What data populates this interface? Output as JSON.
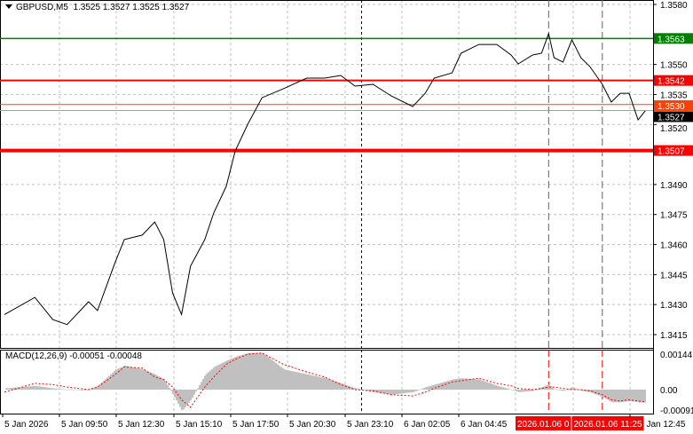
{
  "header": {
    "symbol": "GBPUSD,M5",
    "ohlc": "1.3525 1.3527 1.3525 1.3527"
  },
  "macd_label": {
    "name": "MACD(12,26,9)",
    "values": "-0.00051 -0.00048"
  },
  "colors": {
    "background": "#ffffff",
    "grid": "#c0c0c0",
    "price_line": "#000000",
    "green_level": "#008000",
    "red_level": "#ff0000",
    "bid_line": "#a0a0a0",
    "macd_histogram": "#c0c0c0",
    "macd_signal": "#ff0000"
  },
  "chart_data": [
    {
      "type": "line",
      "title": "GBPUSD,M5",
      "y_ticks": [
        "1.3580",
        "1.3550",
        "1.3535",
        "1.3520",
        "1.3490",
        "1.3475",
        "1.3460",
        "1.3445",
        "1.3430",
        "1.3415"
      ],
      "ylim": [
        1.341,
        1.3582
      ],
      "grid": true,
      "x_ticks": [
        "5 Jan 2026",
        "5 Jan 09:50",
        "5 Jan 12:30",
        "5 Jan 15:10",
        "5 Jan 17:50",
        "5 Jan 20:30",
        "5 Jan 23:10",
        "6 Jan 02:05",
        "6 Jan 04:45",
        "Jan 12:45"
      ],
      "series": {
        "x": [
          "5 Jan 07:15",
          "5 Jan 08:40",
          "5 Jan 09:30",
          "5 Jan 10:10",
          "5 Jan 11:10",
          "5 Jan 11:35",
          "5 Jan 12:25",
          "5 Jan 12:50",
          "5 Jan 13:40",
          "5 Jan 14:15",
          "5 Jan 14:40",
          "5 Jan 15:05",
          "5 Jan 15:30",
          "5 Jan 15:55",
          "5 Jan 16:35",
          "5 Jan 17:00",
          "5 Jan 17:35",
          "5 Jan 18:00",
          "5 Jan 18:35",
          "5 Jan 19:15",
          "5 Jan 20:15",
          "5 Jan 21:20",
          "5 Jan 22:10",
          "5 Jan 22:55",
          "5 Jan 23:40",
          "6 Jan 00:35",
          "6 Jan 01:30",
          "6 Jan 02:35",
          "6 Jan 03:10",
          "6 Jan 03:35",
          "6 Jan 04:25",
          "6 Jan 04:50",
          "6 Jan 05:40",
          "6 Jan 06:30",
          "6 Jan 07:10",
          "6 Jan 07:30",
          "6 Jan 08:10",
          "6 Jan 08:35",
          "6 Jan 08:55",
          "6 Jan 09:10",
          "6 Jan 09:35",
          "6 Jan 10:00",
          "6 Jan 10:25",
          "6 Jan 10:50",
          "6 Jan 11:25",
          "6 Jan 11:50",
          "6 Jan 12:15",
          "6 Jan 12:40",
          "6 Jan 13:05",
          "6 Jan 13:25"
        ],
        "close": [
          1.3425,
          1.34336,
          1.34225,
          1.342,
          1.34314,
          1.3427,
          1.34514,
          1.34625,
          1.34647,
          1.34713,
          1.34625,
          1.34358,
          1.3425,
          1.34492,
          1.34625,
          1.34758,
          1.34891,
          1.35068,
          1.35201,
          1.35334,
          1.35379,
          1.35432,
          1.35432,
          1.35445,
          1.35392,
          1.35401,
          1.35343,
          1.3529,
          1.35356,
          1.35432,
          1.35458,
          1.35556,
          1.356,
          1.356,
          1.35547,
          1.35503,
          1.35547,
          1.35556,
          1.35654,
          1.35534,
          1.35512,
          1.35623,
          1.35534,
          1.3549,
          1.35401,
          1.35312,
          1.35356,
          1.35356,
          1.35223,
          1.35268
        ]
      },
      "levels": [
        {
          "price": 1.3563,
          "label": "1.3563",
          "color": "#008000",
          "width": 1.5
        },
        {
          "price": 1.3542,
          "label": "1.3542",
          "color": "#ff0000",
          "width": 2
        },
        {
          "price": 1.353,
          "label": "1.3530",
          "color": "#ff4000",
          "width": 1
        },
        {
          "price": 1.3527,
          "label": "1.3527",
          "color": "#a0a0a0",
          "width": 1,
          "label_bg": "#000000"
        },
        {
          "price": 1.3507,
          "label": "1.3507",
          "color": "#ff0000",
          "width": 4
        }
      ],
      "vertical_lines": [
        {
          "time": "6 Jan 00:00",
          "color": "#000000",
          "label": ""
        },
        {
          "time": "6 Jan 08:55",
          "color": "#606060",
          "label": "2026.01.06 0"
        },
        {
          "time": "6 Jan 11:25",
          "color": "#606060",
          "label": "2026.01.06 11:25"
        }
      ]
    },
    {
      "type": "bar",
      "title": "MACD(12,26,9) -0.00051 -0.00048",
      "y_ticks": [
        "0.00144",
        "0.00",
        "-0.00091"
      ],
      "ylim": [
        -0.00091,
        0.00144
      ],
      "histogram": [
        5e-05,
        0.00015,
        5e-05,
        0.0,
        0.0,
        0.00015,
        0.0008,
        0.00095,
        0.0008,
        0.0006,
        0.0004,
        -0.0002,
        -0.00085,
        -0.0004,
        0.0006,
        0.0009,
        0.00115,
        0.0013,
        0.00145,
        0.00145,
        0.0008,
        0.0006,
        0.00045,
        0.00025,
        5e-05,
        -0.0001,
        -0.0002,
        -0.0001,
        0.0001,
        0.0002,
        0.0004,
        0.00045,
        0.0004,
        0.00015,
        0.0,
        -0.0001,
        -5e-05,
        0.0001,
        0.0002,
        0.0,
        -5e-05,
        0.0001,
        -5e-05,
        -0.0001,
        -0.0003,
        -0.0005,
        -0.0005,
        -0.00045,
        -0.0005,
        -0.00051
      ],
      "signal": [
        -0.0001,
        0.00025,
        0.0002,
        0.0001,
        0.0,
        0.0001,
        0.0006,
        0.0009,
        0.00085,
        0.0005,
        0.0004,
        0.0001,
        -0.0004,
        -0.0007,
        0.0001,
        0.0005,
        0.001,
        0.0012,
        0.0014,
        0.00145,
        0.001,
        0.0007,
        0.0005,
        0.0002,
        0.0,
        -5e-05,
        -0.0002,
        -0.00025,
        -0.0001,
        5e-05,
        0.0003,
        0.00035,
        0.00045,
        0.00025,
        0.00015,
        5e-05,
        0.0,
        5e-05,
        0.0001,
        0.0001,
        5e-05,
        0.0,
        0.0,
        -5e-05,
        -0.0002,
        -0.0004,
        -0.00045,
        -0.0004,
        -0.00045,
        -0.00048
      ]
    }
  ]
}
